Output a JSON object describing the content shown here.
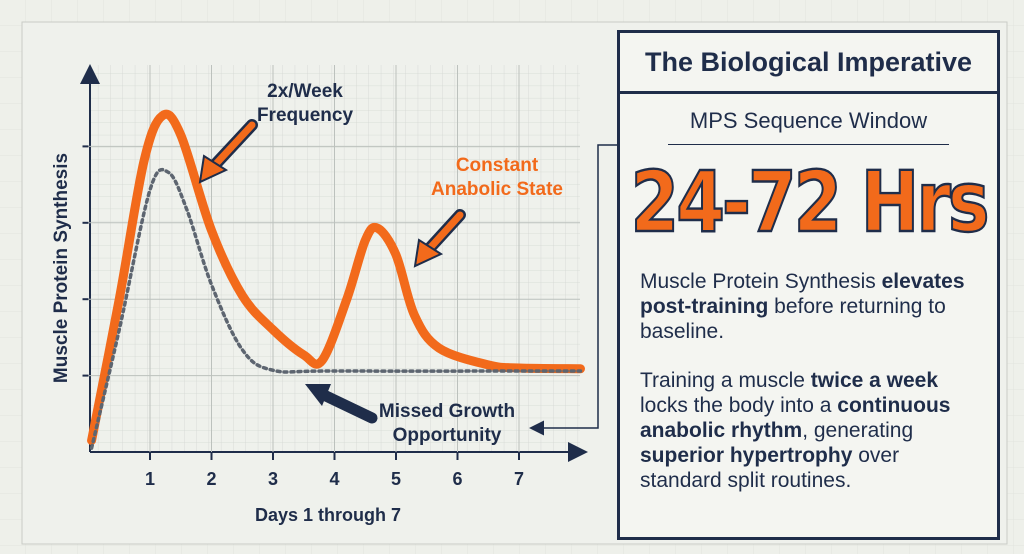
{
  "chart_data": {
    "type": "line",
    "y_label": "Muscle Protein Synthesis",
    "x_label": "Days 1 through 7",
    "xlim": [
      0,
      8
    ],
    "xticks": [
      1,
      2,
      3,
      4,
      5,
      6,
      7
    ],
    "ylim": [
      0,
      5
    ],
    "yticks": [
      1,
      2,
      3,
      4
    ],
    "grid": true,
    "series": [
      {
        "color": "#f26a1b",
        "style": "solid",
        "x": [
          0.05,
          0.5,
          0.9,
          1.2,
          1.5,
          2,
          2.5,
          3,
          3.5,
          3.8,
          4.2,
          4.5,
          4.7,
          5,
          5.3,
          5.7,
          6.5,
          7,
          8
        ],
        "values": [
          0.15,
          2.0,
          3.8,
          4.4,
          4.15,
          2.9,
          2.05,
          1.6,
          1.27,
          1.2,
          2.0,
          2.77,
          2.93,
          2.58,
          1.79,
          1.36,
          1.14,
          1.1,
          1.09
        ]
      },
      {
        "color": "#5d6570",
        "style": "dotted",
        "x": [
          0.05,
          0.5,
          1,
          1.3,
          1.6,
          2,
          2.5,
          3,
          4,
          8
        ],
        "values": [
          0.05,
          1.6,
          3.43,
          3.66,
          3.17,
          2.19,
          1.34,
          1.07,
          1.06,
          1.06
        ]
      }
    ],
    "annotations": [
      "2x/Week\nFrequency",
      "Constant\nAnabolic State",
      "Missed Growth\nOpportunity"
    ]
  },
  "panel": {
    "title": "The Biological Imperative",
    "subtitle": "MPS Sequence Window",
    "headline": "24-72 Hrs",
    "paragraphs": [
      [
        {
          "text": "Muscle Protein Synthesis ",
          "bold": false
        },
        {
          "text": "elevates post-training",
          "bold": true
        },
        {
          "text": " before returning to baseline.",
          "bold": false
        }
      ],
      [
        {
          "text": "Training a muscle ",
          "bold": false
        },
        {
          "text": "twice a week",
          "bold": true
        },
        {
          "text": " locks the body into a ",
          "bold": false
        },
        {
          "text": "continuous anabolic rhythm",
          "bold": true
        },
        {
          "text": ", generating ",
          "bold": false
        },
        {
          "text": "superior hypertrophy",
          "bold": true
        },
        {
          "text": " over standard split routines.",
          "bold": false
        }
      ]
    ]
  }
}
